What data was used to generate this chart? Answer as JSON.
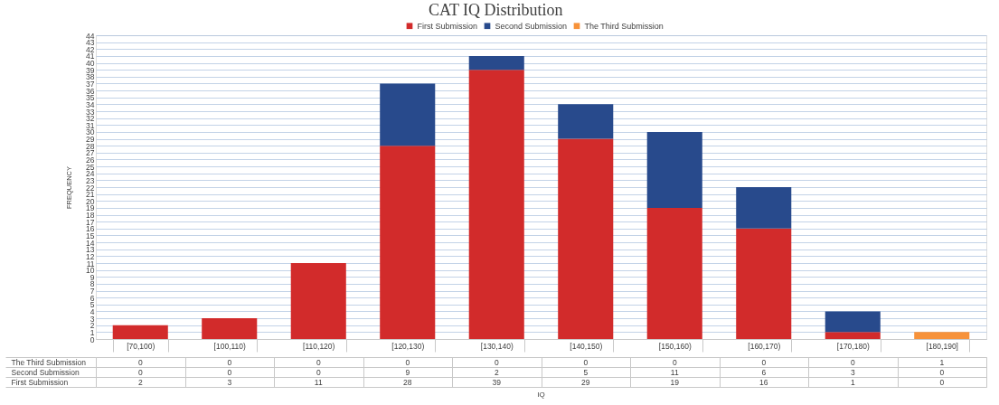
{
  "chart_data": {
    "type": "bar",
    "title": "CAT IQ Distribution",
    "ylabel": "FREQUENCY",
    "annotations": [
      "IQ"
    ],
    "categories": [
      "[70,100)",
      "[100,110)",
      "[110,120)",
      "[120,130)",
      "[130,140)",
      "[140,150)",
      "[150,160)",
      "[160,170)",
      "[170,180)",
      "[180,190]"
    ],
    "series": [
      {
        "name": "First Submission",
        "color": "#d22b2b",
        "values": [
          2,
          3,
          11,
          28,
          39,
          29,
          19,
          16,
          1,
          0
        ]
      },
      {
        "name": "Second Submission",
        "color": "#284a8c",
        "values": [
          0,
          0,
          0,
          9,
          2,
          5,
          11,
          6,
          3,
          0
        ]
      },
      {
        "name": "The Third Submission",
        "color": "#f7923a",
        "values": [
          0,
          0,
          0,
          0,
          0,
          0,
          0,
          0,
          0,
          1
        ]
      }
    ],
    "stacked": true,
    "ylim": [
      0,
      44
    ],
    "yticks": [
      0,
      1,
      2,
      3,
      4,
      5,
      6,
      7,
      8,
      9,
      10,
      11,
      12,
      13,
      14,
      15,
      16,
      17,
      18,
      19,
      20,
      21,
      22,
      23,
      24,
      25,
      26,
      27,
      28,
      29,
      30,
      31,
      32,
      33,
      34,
      35,
      36,
      37,
      38,
      39,
      40,
      41,
      42,
      43,
      44
    ],
    "grid": "y",
    "legend": "top",
    "data_labels": true
  }
}
